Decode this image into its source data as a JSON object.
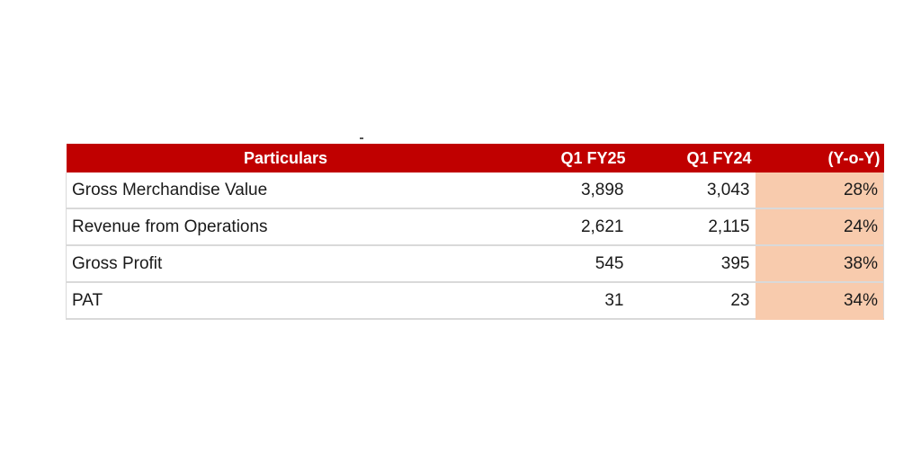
{
  "table": {
    "headers": {
      "particulars": "Particulars",
      "q1_fy25": "Q1 FY25",
      "q1_fy24": "Q1 FY24",
      "yoy": "(Y-o-Y)"
    },
    "rows": [
      {
        "particular": "Gross Merchandise Value",
        "q1_fy25": "3,898",
        "q1_fy24": "3,043",
        "yoy": "28%"
      },
      {
        "particular": "Revenue from Operations",
        "q1_fy25": "2,621",
        "q1_fy24": "2,115",
        "yoy": "24%"
      },
      {
        "particular": "Gross Profit",
        "q1_fy25": "545",
        "q1_fy24": "395",
        "yoy": "38%"
      },
      {
        "particular": "PAT",
        "q1_fy25": "31",
        "q1_fy24": "23",
        "yoy": "34%"
      }
    ],
    "colors": {
      "header_bg": "#c00000",
      "header_text": "#ffffff",
      "yoy_bg": "#f8cbad"
    }
  }
}
